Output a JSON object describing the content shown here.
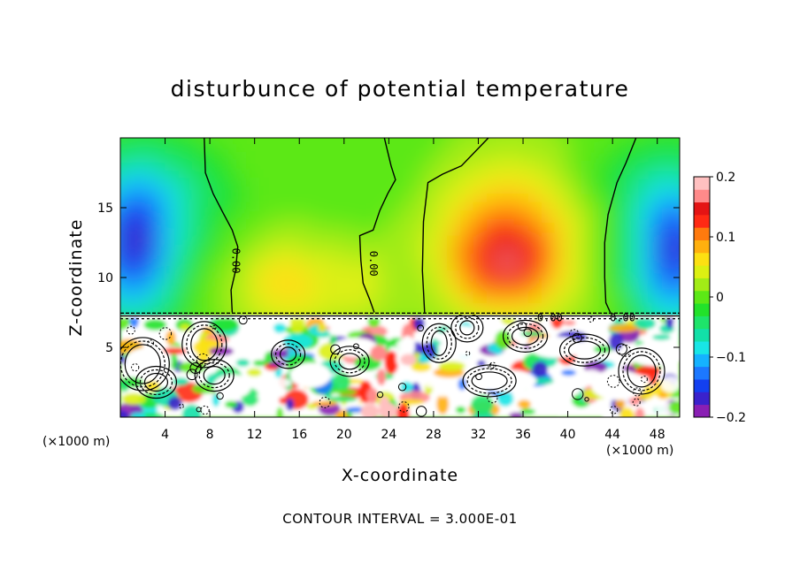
{
  "chart_data": {
    "type": "heatmap",
    "title": "disturbunce of potential temperature",
    "xlabel": "X-coordinate",
    "ylabel": "Z-coordinate",
    "x_unit": "(×1000 m)",
    "z_unit": "(×1000 m)",
    "xlim": [
      0,
      50
    ],
    "ylim": [
      0,
      20
    ],
    "xticks": [
      4,
      8,
      12,
      16,
      20,
      24,
      28,
      32,
      36,
      40,
      44,
      48
    ],
    "yticks": [
      5,
      10,
      15
    ],
    "colorbar": {
      "range": [
        -0.2,
        0.2
      ],
      "ticks": [
        -0.2,
        -0.1,
        0,
        0.1,
        0.2
      ],
      "tick_labels": [
        "−0.2",
        "−0.1",
        "0",
        "0.1",
        "0.2"
      ],
      "colors": [
        "#8a1fb4",
        "#3a22cc",
        "#1340f0",
        "#1c78ff",
        "#15b2ff",
        "#18e6e6",
        "#12e0a8",
        "#1ee46a",
        "#22e22a",
        "#5ce816",
        "#a2ec16",
        "#dcf012",
        "#fce012",
        "#ffb00e",
        "#ff7a0e",
        "#ff2a14",
        "#e41414",
        "#ff8a8a",
        "#ffc0c0"
      ]
    },
    "contour_labels": [
      {
        "text": "0.00",
        "x": 10.3,
        "z": 11.2,
        "rotate": 90
      },
      {
        "text": "0.00",
        "x": 22.6,
        "z": 11.0,
        "rotate": 90
      },
      {
        "text": "0.00",
        "x": 38.4,
        "z": 7.1,
        "rotate": 0
      },
      {
        "text": "0.00",
        "x": 44.9,
        "z": 7.1,
        "rotate": 0
      }
    ],
    "zero_contours": [
      [
        [
          7.5,
          20
        ],
        [
          7.6,
          17.5
        ],
        [
          8.3,
          16
        ],
        [
          9.2,
          14.6
        ],
        [
          10.0,
          13.4
        ],
        [
          10.5,
          12.2
        ],
        [
          10.3,
          10.5
        ],
        [
          9.9,
          9.1
        ],
        [
          10.0,
          7.5
        ]
      ],
      [
        [
          23.6,
          20
        ],
        [
          24.2,
          18
        ],
        [
          24.6,
          17
        ],
        [
          23.9,
          16
        ],
        [
          23.2,
          14.8
        ],
        [
          22.6,
          13.4
        ],
        [
          21.4,
          13.0
        ],
        [
          21.5,
          11.2
        ],
        [
          21.7,
          9.6
        ],
        [
          22.3,
          8.4
        ],
        [
          22.7,
          7.5
        ]
      ],
      [
        [
          32.9,
          20
        ],
        [
          30.5,
          18
        ],
        [
          28.8,
          17.4
        ],
        [
          27.5,
          16.8
        ],
        [
          27.1,
          14
        ],
        [
          27.0,
          10.5
        ],
        [
          27.2,
          7.5
        ]
      ],
      [
        [
          46.1,
          20
        ],
        [
          45.2,
          18.2
        ],
        [
          44.4,
          16.8
        ],
        [
          43.6,
          14.5
        ],
        [
          43.3,
          12.5
        ],
        [
          43.3,
          10
        ],
        [
          43.4,
          8.2
        ],
        [
          43.8,
          7.5
        ]
      ]
    ],
    "features": {
      "inversion_level_z": 7.3,
      "upper_warm_core": {
        "x": 34.5,
        "z": 11.5,
        "value": 0.13
      },
      "upper_cold_cores": [
        {
          "x": 1.8,
          "z": 13,
          "value": -0.16
        },
        {
          "x": 48.8,
          "z": 12.5,
          "value": -0.16
        }
      ],
      "lower_turbulent_layer_z": [
        0,
        7.3
      ],
      "hot_plume_x": 23.8
    }
  },
  "footnote": "CONTOUR INTERVAL = 3.000E-01"
}
